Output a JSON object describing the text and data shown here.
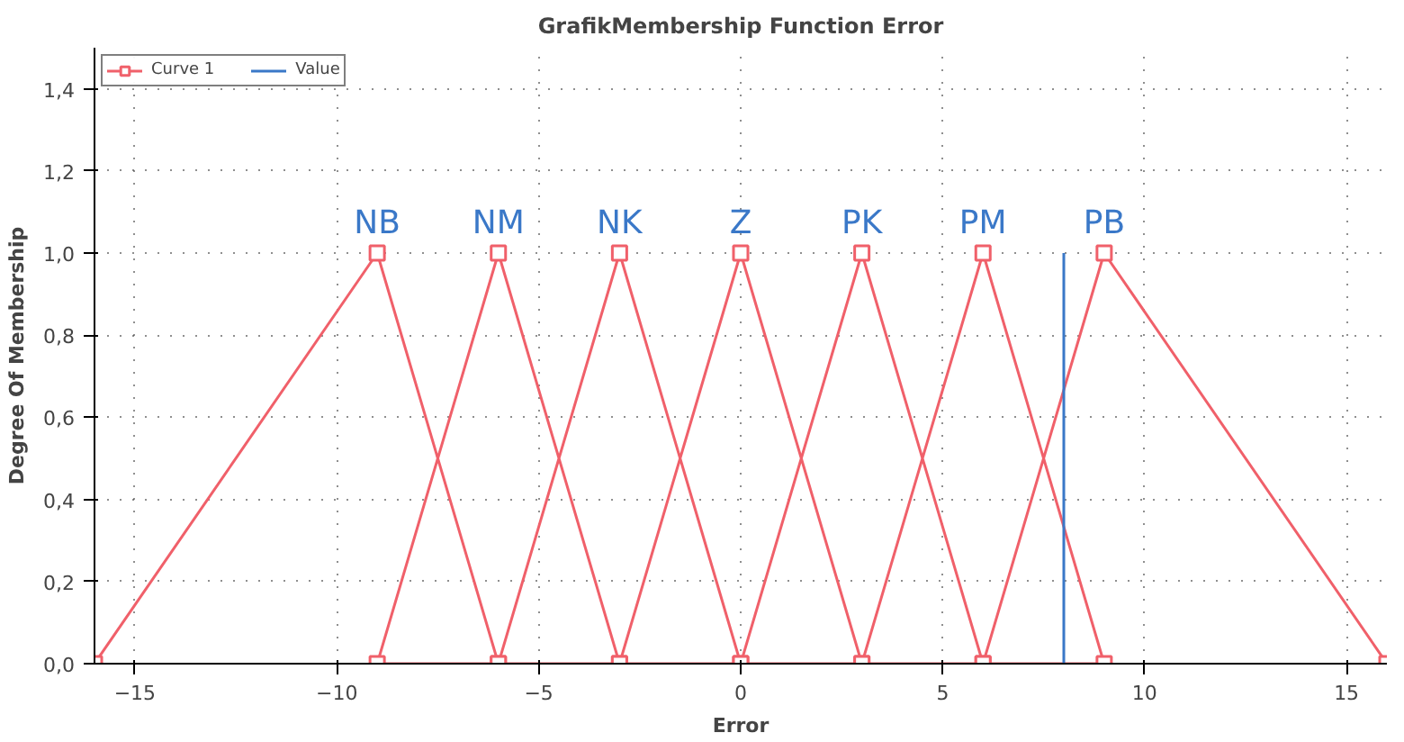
{
  "chart_data": {
    "type": "line",
    "title": "GrafikMembership Function Error",
    "xlabel": "Error",
    "ylabel": "Degree Of Membership",
    "series": [
      {
        "name": "Curve 1",
        "color": "#f0606a",
        "marker": "square",
        "x": [
          -16,
          -9,
          -6,
          -9,
          -6,
          -3,
          -6,
          -3,
          0,
          -3,
          0,
          3,
          0,
          3,
          6,
          3,
          6,
          9,
          6,
          9,
          16
        ],
        "values": [
          0,
          1,
          0,
          0,
          1,
          0,
          0,
          1,
          0,
          0,
          1,
          0,
          0,
          1,
          0,
          0,
          1,
          0,
          0,
          1,
          0
        ]
      },
      {
        "name": "Value",
        "color": "#3a78c8",
        "marker": "none",
        "x": [
          8,
          8
        ],
        "values": [
          0,
          1
        ]
      }
    ],
    "annotations": [
      {
        "text": "NB",
        "x": -9,
        "y": 1
      },
      {
        "text": "NM",
        "x": -6,
        "y": 1
      },
      {
        "text": "NK",
        "x": -3,
        "y": 1
      },
      {
        "text": "Z",
        "x": 0,
        "y": 1
      },
      {
        "text": "PK",
        "x": 3,
        "y": 1
      },
      {
        "text": "PM",
        "x": 6,
        "y": 1
      },
      {
        "text": "PB",
        "x": 9,
        "y": 1
      }
    ],
    "xlim": [
      -16,
      16
    ],
    "ylim": [
      0,
      1.5
    ],
    "xticks": [
      -15,
      -10,
      -5,
      0,
      5,
      10,
      15
    ],
    "yticks": [
      {
        "value": 0,
        "label": "0,0"
      },
      {
        "value": 0.2,
        "label": "0,2"
      },
      {
        "value": 0.4,
        "label": "0,4"
      },
      {
        "value": 0.6,
        "label": "0,6"
      },
      {
        "value": 0.8,
        "label": "0,8"
      },
      {
        "value": 1.0,
        "label": "1,0"
      },
      {
        "value": 1.2,
        "label": "1,2"
      },
      {
        "value": 1.4,
        "label": "1,4"
      }
    ],
    "grid": true,
    "legend": "top left",
    "line_style": "solid"
  }
}
